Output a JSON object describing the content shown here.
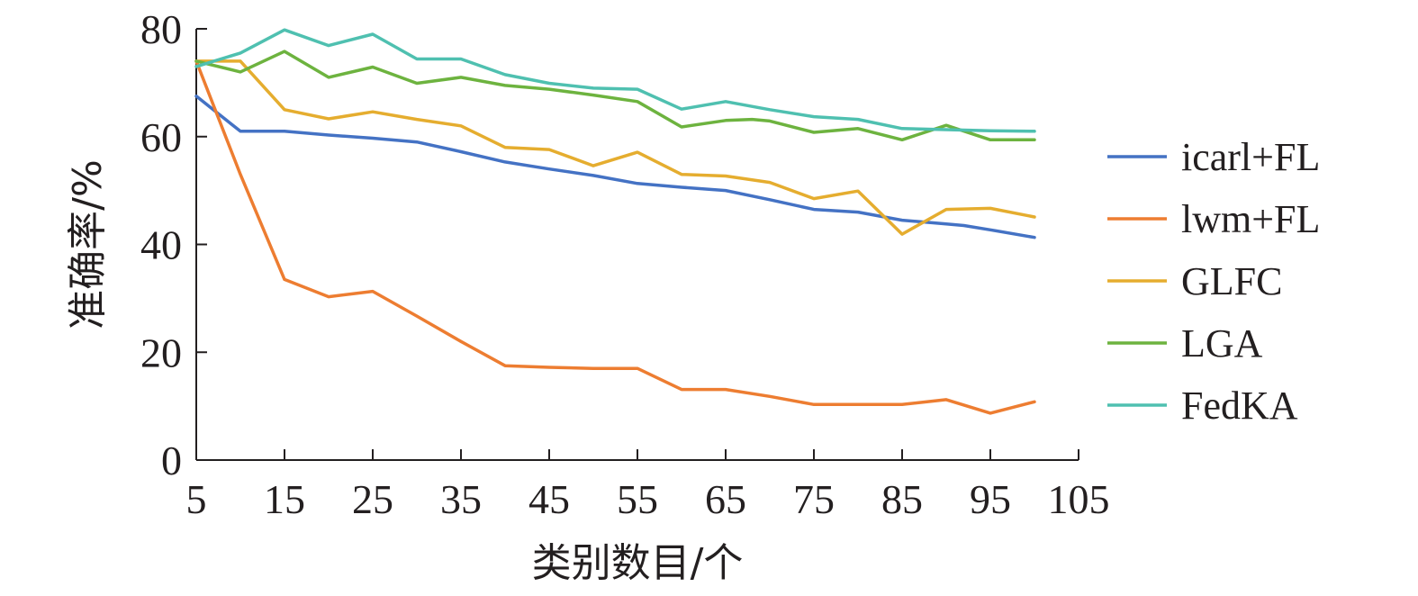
{
  "chart_data": {
    "type": "line",
    "xlabel": "类别数目/个",
    "ylabel": "准确率/%",
    "xlim": [
      5,
      105
    ],
    "ylim": [
      0,
      80
    ],
    "xticks": [
      5,
      15,
      25,
      35,
      45,
      55,
      65,
      75,
      85,
      95,
      105
    ],
    "yticks": [
      0,
      20,
      40,
      60,
      80
    ],
    "grid": false,
    "legend_position": "right",
    "series": [
      {
        "name": "icarl+FL",
        "color": "#4472c4",
        "x": [
          5,
          10,
          15,
          20,
          25,
          30,
          35,
          40,
          45,
          50,
          55,
          60,
          65,
          70,
          75,
          80,
          85,
          90,
          92,
          95,
          100
        ],
        "y": [
          67.5,
          61,
          61,
          60.3,
          59.7,
          59,
          57.2,
          55.3,
          54,
          52.8,
          51.3,
          50.6,
          50,
          48.3,
          46.5,
          46,
          44.5,
          43.8,
          43.5,
          42.7,
          41.3
        ]
      },
      {
        "name": "lwm+FL",
        "color": "#ed7d31",
        "x": [
          5,
          10,
          15,
          20,
          25,
          30,
          35,
          40,
          45,
          50,
          55,
          60,
          65,
          70,
          75,
          80,
          85,
          90,
          95,
          100
        ],
        "y": [
          74,
          53,
          33.5,
          30.3,
          31.3,
          26.7,
          22,
          17.5,
          17.2,
          17,
          17,
          13.1,
          13.1,
          11.8,
          10.3,
          10.3,
          10.3,
          11.2,
          8.7,
          10.8
        ]
      },
      {
        "name": "GLFC",
        "color": "#e5ad2f",
        "x": [
          5,
          10,
          15,
          20,
          25,
          30,
          35,
          40,
          45,
          50,
          55,
          60,
          65,
          70,
          75,
          80,
          85,
          90,
          95,
          100
        ],
        "y": [
          74,
          74,
          65,
          63.3,
          64.6,
          63.2,
          62,
          58,
          57.6,
          54.6,
          57.1,
          53,
          52.7,
          51.5,
          48.5,
          49.9,
          41.9,
          46.5,
          46.7,
          45.1
        ]
      },
      {
        "name": "LGA",
        "color": "#6db33f",
        "x": [
          5,
          10,
          15,
          20,
          25,
          30,
          35,
          40,
          45,
          50,
          55,
          60,
          65,
          68,
          70,
          75,
          80,
          85,
          90,
          95,
          100
        ],
        "y": [
          74,
          72,
          75.8,
          71,
          72.9,
          69.9,
          71,
          69.5,
          68.8,
          67.7,
          66.5,
          61.8,
          63,
          63.2,
          62.9,
          60.8,
          61.5,
          59.4,
          62.1,
          59.4,
          59.4
        ]
      },
      {
        "name": "FedKA",
        "color": "#4fc0b0",
        "x": [
          5,
          10,
          15,
          20,
          25,
          30,
          35,
          40,
          45,
          50,
          55,
          60,
          65,
          70,
          75,
          80,
          85,
          90,
          95,
          100
        ],
        "y": [
          73,
          75.5,
          79.8,
          76.9,
          79,
          74.4,
          74.4,
          71.5,
          69.9,
          69,
          68.8,
          65.1,
          66.5,
          65,
          63.7,
          63.2,
          61.5,
          61.3,
          61.1,
          61
        ]
      }
    ]
  }
}
